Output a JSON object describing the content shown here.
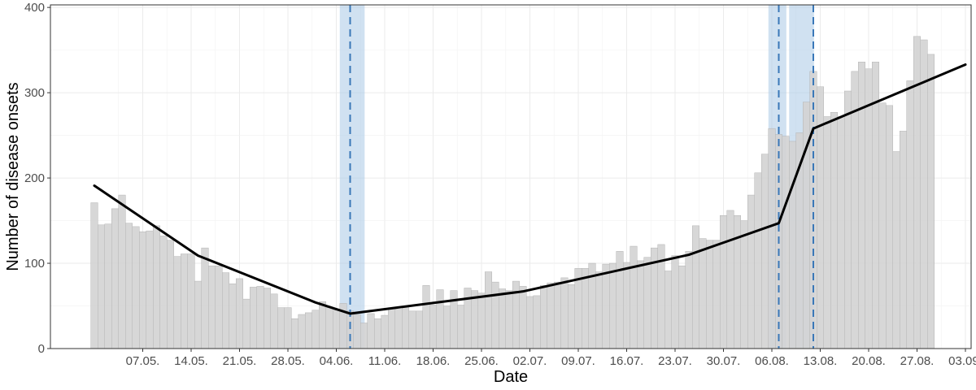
{
  "chart_data": {
    "type": "bar",
    "xlabel": "Date",
    "ylabel": "Number of disease onsets",
    "ylim": [
      0,
      403
    ],
    "grid": true,
    "x_start": "2020-04-30",
    "x_end": "2020-09-03",
    "x_ticks": [
      "07.05.",
      "14.05.",
      "21.05.",
      "28.05.",
      "04.06.",
      "11.06.",
      "18.06.",
      "25.06.",
      "02.07.",
      "09.07.",
      "16.07.",
      "23.07.",
      "30.07.",
      "06.08.",
      "13.08.",
      "20.08.",
      "27.08.",
      "03.09."
    ],
    "y_ticks": [
      0,
      100,
      200,
      300,
      400
    ],
    "values": [
      171,
      145,
      146,
      164,
      180,
      147,
      143,
      137,
      138,
      144,
      132,
      127,
      108,
      111,
      111,
      79,
      118,
      97,
      97,
      89,
      76,
      82,
      58,
      72,
      73,
      71,
      64,
      48,
      48,
      35,
      40,
      42,
      45,
      55,
      48,
      45,
      53,
      44,
      40,
      30,
      41,
      35,
      39,
      48,
      46,
      49,
      44,
      44,
      74,
      51,
      69,
      50,
      68,
      51,
      71,
      68,
      65,
      90,
      78,
      70,
      68,
      79,
      73,
      61,
      62,
      74,
      77,
      78,
      83,
      75,
      94,
      94,
      100,
      90,
      99,
      100,
      114,
      101,
      120,
      103,
      107,
      118,
      122,
      91,
      109,
      97,
      114,
      144,
      129,
      127,
      127,
      156,
      162,
      156,
      150,
      180,
      206,
      228,
      258,
      251,
      249,
      243,
      253,
      289,
      325,
      307,
      272,
      277,
      272,
      302,
      325,
      336,
      328,
      336,
      288,
      285,
      231,
      255,
      314,
      366,
      362,
      345
    ],
    "fit_line": [
      [
        "2020-04-30",
        191
      ],
      [
        "2020-05-15",
        109
      ],
      [
        "2020-06-01",
        54
      ],
      [
        "2020-06-06",
        41
      ],
      [
        "2020-07-01",
        67
      ],
      [
        "2020-07-25",
        110
      ],
      [
        "2020-08-07",
        147
      ],
      [
        "2020-08-12",
        258
      ],
      [
        "2020-09-03",
        333
      ]
    ],
    "changepoints": [
      {
        "date": "2020-06-06",
        "ci": [
          "2020-06-05",
          "2020-06-07"
        ]
      },
      {
        "date": "2020-08-07",
        "ci": [
          "2020-08-06",
          "2020-08-07"
        ]
      },
      {
        "date": "2020-08-12",
        "ci": [
          "2020-08-09",
          "2020-08-11"
        ]
      }
    ],
    "colors": {
      "bar": "#d3d3d3",
      "bar_border": "#b3b3b3",
      "line": "#000000",
      "changepoint": "#3a78b8",
      "ci_band": "#aac8e6"
    }
  }
}
